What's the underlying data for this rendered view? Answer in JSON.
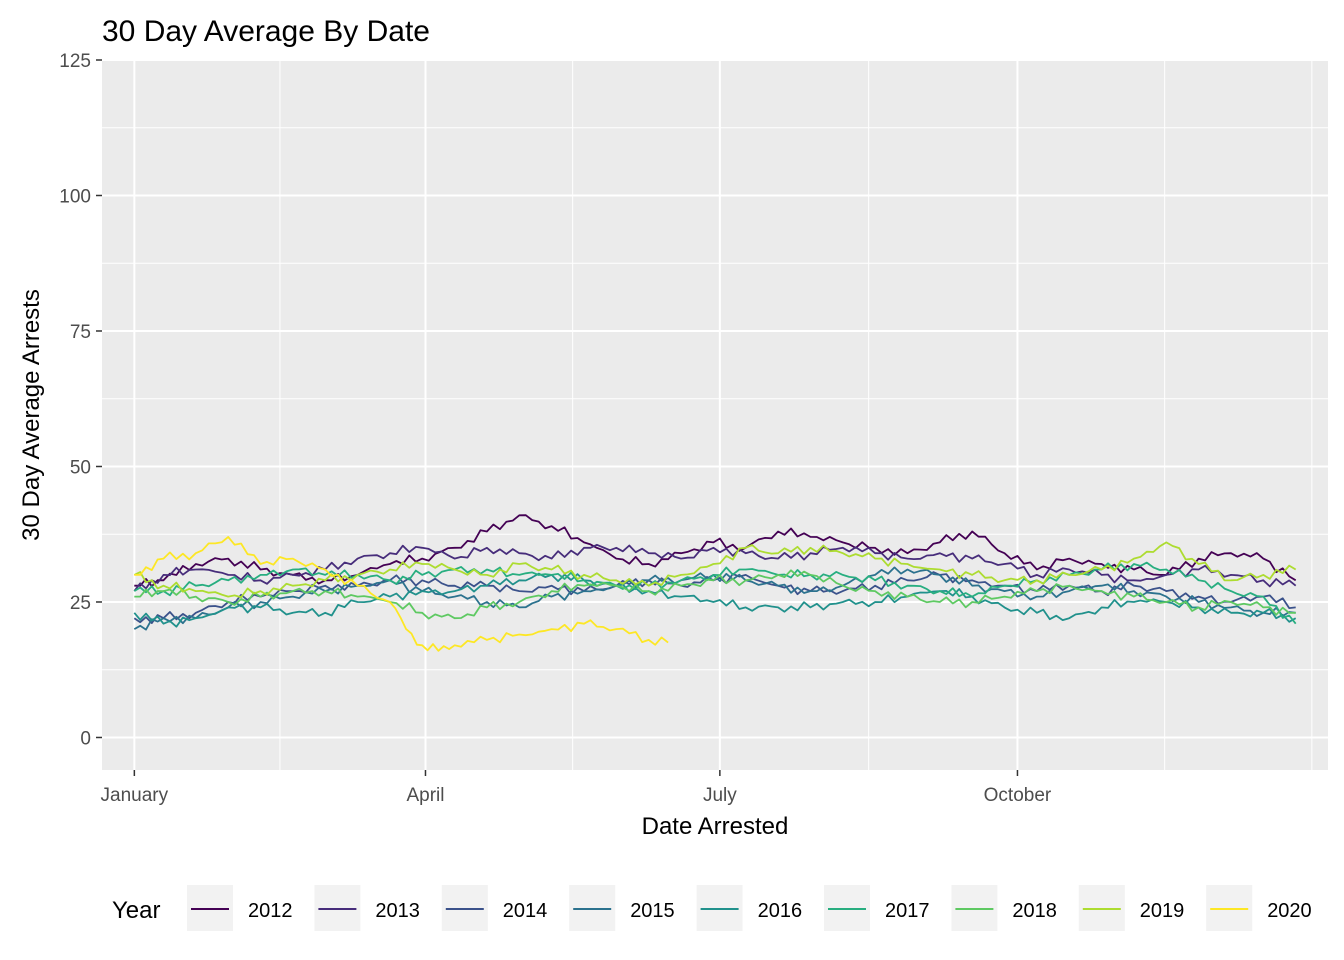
{
  "chart_data": {
    "type": "line",
    "title": "30 Day Average By Date",
    "xlabel": "Date Arrested",
    "ylabel": "30 Day Average Arrests",
    "xlim": [
      "Dec 22",
      "Jan 05 (next year)"
    ],
    "ylim": [
      -6,
      125
    ],
    "x_ticks": [
      "January",
      "April",
      "July",
      "October"
    ],
    "x_tick_days": [
      1,
      91,
      182,
      274
    ],
    "y_ticks": [
      0,
      25,
      50,
      75,
      100,
      125
    ],
    "y_tick_labels": [
      "0",
      "25",
      "50",
      "75",
      "100",
      "125"
    ],
    "grid": true,
    "legend_position": "bottom",
    "legend_title": "Year",
    "x_unit": "day of year",
    "series": [
      {
        "name": "2012",
        "color": "#440154",
        "x": [
          1,
          10,
          20,
          30,
          40,
          50,
          60,
          70,
          80,
          90,
          100,
          110,
          120,
          130,
          140,
          150,
          160,
          170,
          180,
          190,
          200,
          210,
          220,
          230,
          240,
          250,
          260,
          270,
          280,
          290,
          300,
          310,
          320,
          330,
          340,
          350,
          360
        ],
        "values": [
          28,
          29,
          32,
          33,
          31,
          30,
          29,
          30,
          32,
          33,
          35,
          38,
          41,
          39,
          36,
          33,
          32,
          34,
          36,
          35,
          38,
          37,
          36,
          35,
          34,
          36,
          38,
          34,
          31,
          33,
          32,
          31,
          30,
          33,
          34,
          33,
          29
        ]
      },
      {
        "name": "2013",
        "color": "#472d7b",
        "x": [
          1,
          10,
          20,
          30,
          40,
          50,
          60,
          70,
          80,
          90,
          100,
          110,
          120,
          130,
          140,
          150,
          160,
          170,
          180,
          190,
          200,
          210,
          220,
          230,
          240,
          250,
          260,
          270,
          280,
          290,
          300,
          310,
          320,
          330,
          340,
          350,
          360
        ],
        "values": [
          27,
          30,
          31,
          30,
          29,
          30,
          31,
          33,
          34,
          35,
          33,
          35,
          34,
          33,
          35,
          35,
          34,
          33,
          35,
          34,
          33,
          34,
          35,
          34,
          33,
          34,
          33,
          32,
          30,
          31,
          30,
          29,
          30,
          31,
          30,
          29,
          28
        ]
      },
      {
        "name": "2014",
        "color": "#3b528b",
        "x": [
          1,
          10,
          20,
          30,
          40,
          50,
          60,
          70,
          80,
          90,
          100,
          110,
          120,
          130,
          140,
          150,
          160,
          170,
          180,
          190,
          200,
          210,
          220,
          230,
          240,
          250,
          260,
          270,
          280,
          290,
          300,
          310,
          320,
          330,
          340,
          350,
          360
        ],
        "values": [
          22,
          22,
          23,
          25,
          26,
          27,
          28,
          28,
          29,
          29,
          28,
          28,
          27,
          28,
          27,
          28,
          29,
          28,
          29,
          30,
          28,
          27,
          27,
          28,
          29,
          30,
          29,
          28,
          27,
          28,
          27,
          28,
          27,
          26,
          25,
          26,
          24
        ]
      },
      {
        "name": "2015",
        "color": "#2c728e",
        "x": [
          1,
          10,
          20,
          30,
          40,
          50,
          60,
          70,
          80,
          90,
          100,
          110,
          120,
          130,
          140,
          150,
          160,
          170,
          180,
          190,
          200,
          210,
          220,
          230,
          240,
          250,
          260,
          270,
          280,
          290,
          300,
          310,
          320,
          330,
          340,
          350,
          360
        ],
        "values": [
          20,
          22,
          22,
          24,
          25,
          26,
          27,
          28,
          29,
          27,
          26,
          25,
          24,
          26,
          27,
          28,
          29,
          29,
          30,
          29,
          28,
          27,
          28,
          30,
          31,
          30,
          28,
          27,
          26,
          27,
          28,
          27,
          26,
          25,
          24,
          23,
          23
        ]
      },
      {
        "name": "2016",
        "color": "#21918c",
        "x": [
          1,
          10,
          20,
          30,
          40,
          50,
          60,
          70,
          80,
          90,
          100,
          110,
          120,
          130,
          140,
          150,
          160,
          170,
          180,
          190,
          200,
          210,
          220,
          230,
          240,
          250,
          260,
          270,
          280,
          290,
          300,
          310,
          320,
          330,
          340,
          350,
          360
        ],
        "values": [
          23,
          21,
          22,
          24,
          24,
          23,
          23,
          25,
          26,
          27,
          27,
          28,
          29,
          30,
          29,
          28,
          27,
          26,
          25,
          24,
          24,
          24,
          25,
          25,
          26,
          27,
          26,
          24,
          23,
          22,
          24,
          25,
          25,
          24,
          23,
          23,
          22
        ]
      },
      {
        "name": "2017",
        "color": "#28ae80",
        "x": [
          1,
          10,
          20,
          30,
          40,
          50,
          60,
          70,
          80,
          90,
          100,
          110,
          120,
          130,
          140,
          150,
          160,
          170,
          180,
          190,
          200,
          210,
          220,
          230,
          240,
          250,
          260,
          270,
          280,
          290,
          300,
          310,
          320,
          330,
          340,
          350,
          360
        ],
        "values": [
          27,
          27,
          28,
          29,
          30,
          31,
          30,
          30,
          29,
          30,
          31,
          31,
          30,
          30,
          29,
          28,
          28,
          29,
          30,
          31,
          30,
          30,
          30,
          29,
          28,
          27,
          26,
          28,
          29,
          30,
          31,
          32,
          31,
          29,
          27,
          26,
          21
        ]
      },
      {
        "name": "2018",
        "color": "#5ec962",
        "x": [
          1,
          10,
          20,
          30,
          40,
          50,
          60,
          70,
          80,
          90,
          100,
          110,
          120,
          130,
          140,
          150,
          160,
          170,
          180,
          190,
          200,
          210,
          220,
          230,
          240,
          250,
          260,
          270,
          280,
          290,
          300,
          310,
          320,
          330,
          340,
          350,
          360
        ],
        "values": [
          26,
          27,
          26,
          25,
          26,
          27,
          27,
          26,
          25,
          23,
          22,
          24,
          25,
          27,
          28,
          28,
          27,
          28,
          29,
          29,
          30,
          30,
          28,
          27,
          26,
          25,
          25,
          26,
          27,
          28,
          27,
          26,
          25,
          24,
          25,
          24,
          23
        ]
      },
      {
        "name": "2019",
        "color": "#addc30",
        "x": [
          1,
          10,
          20,
          30,
          40,
          50,
          60,
          70,
          80,
          90,
          100,
          110,
          120,
          130,
          140,
          150,
          160,
          170,
          180,
          190,
          200,
          210,
          220,
          230,
          240,
          250,
          260,
          270,
          280,
          290,
          300,
          310,
          320,
          330,
          340,
          350,
          360
        ],
        "values": [
          30,
          28,
          27,
          26,
          27,
          28,
          29,
          30,
          31,
          32,
          31,
          30,
          32,
          31,
          30,
          29,
          28,
          30,
          32,
          35,
          34,
          35,
          34,
          33,
          32,
          31,
          30,
          29,
          29,
          30,
          31,
          33,
          36,
          32,
          29,
          30,
          31
        ]
      },
      {
        "name": "2020",
        "color": "#fde725",
        "x": [
          1,
          10,
          20,
          30,
          40,
          50,
          60,
          70,
          80,
          85,
          90,
          95,
          100,
          110,
          120,
          130,
          140,
          150,
          160,
          166
        ],
        "values": [
          30,
          33,
          34,
          37,
          32,
          33,
          31,
          28,
          25,
          20,
          17,
          16,
          17,
          18,
          19,
          20,
          21,
          20,
          18,
          17.5
        ]
      }
    ]
  }
}
